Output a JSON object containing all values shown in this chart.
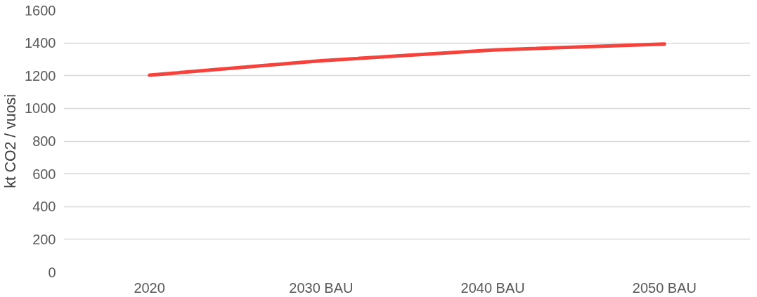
{
  "chart_data": {
    "type": "line",
    "ylabel": "kt CO2 / vuosi",
    "categories": [
      "2020",
      "2030 BAU",
      "2040 BAU",
      "2050 BAU"
    ],
    "series": [
      {
        "color": "#f4433c",
        "values": [
          1203,
          1291,
          1357,
          1393
        ]
      }
    ],
    "ylim": [
      0,
      1600
    ],
    "yticks": [
      0,
      200,
      400,
      600,
      800,
      1000,
      1200,
      1400,
      1600
    ],
    "grid": "y",
    "marker": "none",
    "line_style": "solid"
  }
}
